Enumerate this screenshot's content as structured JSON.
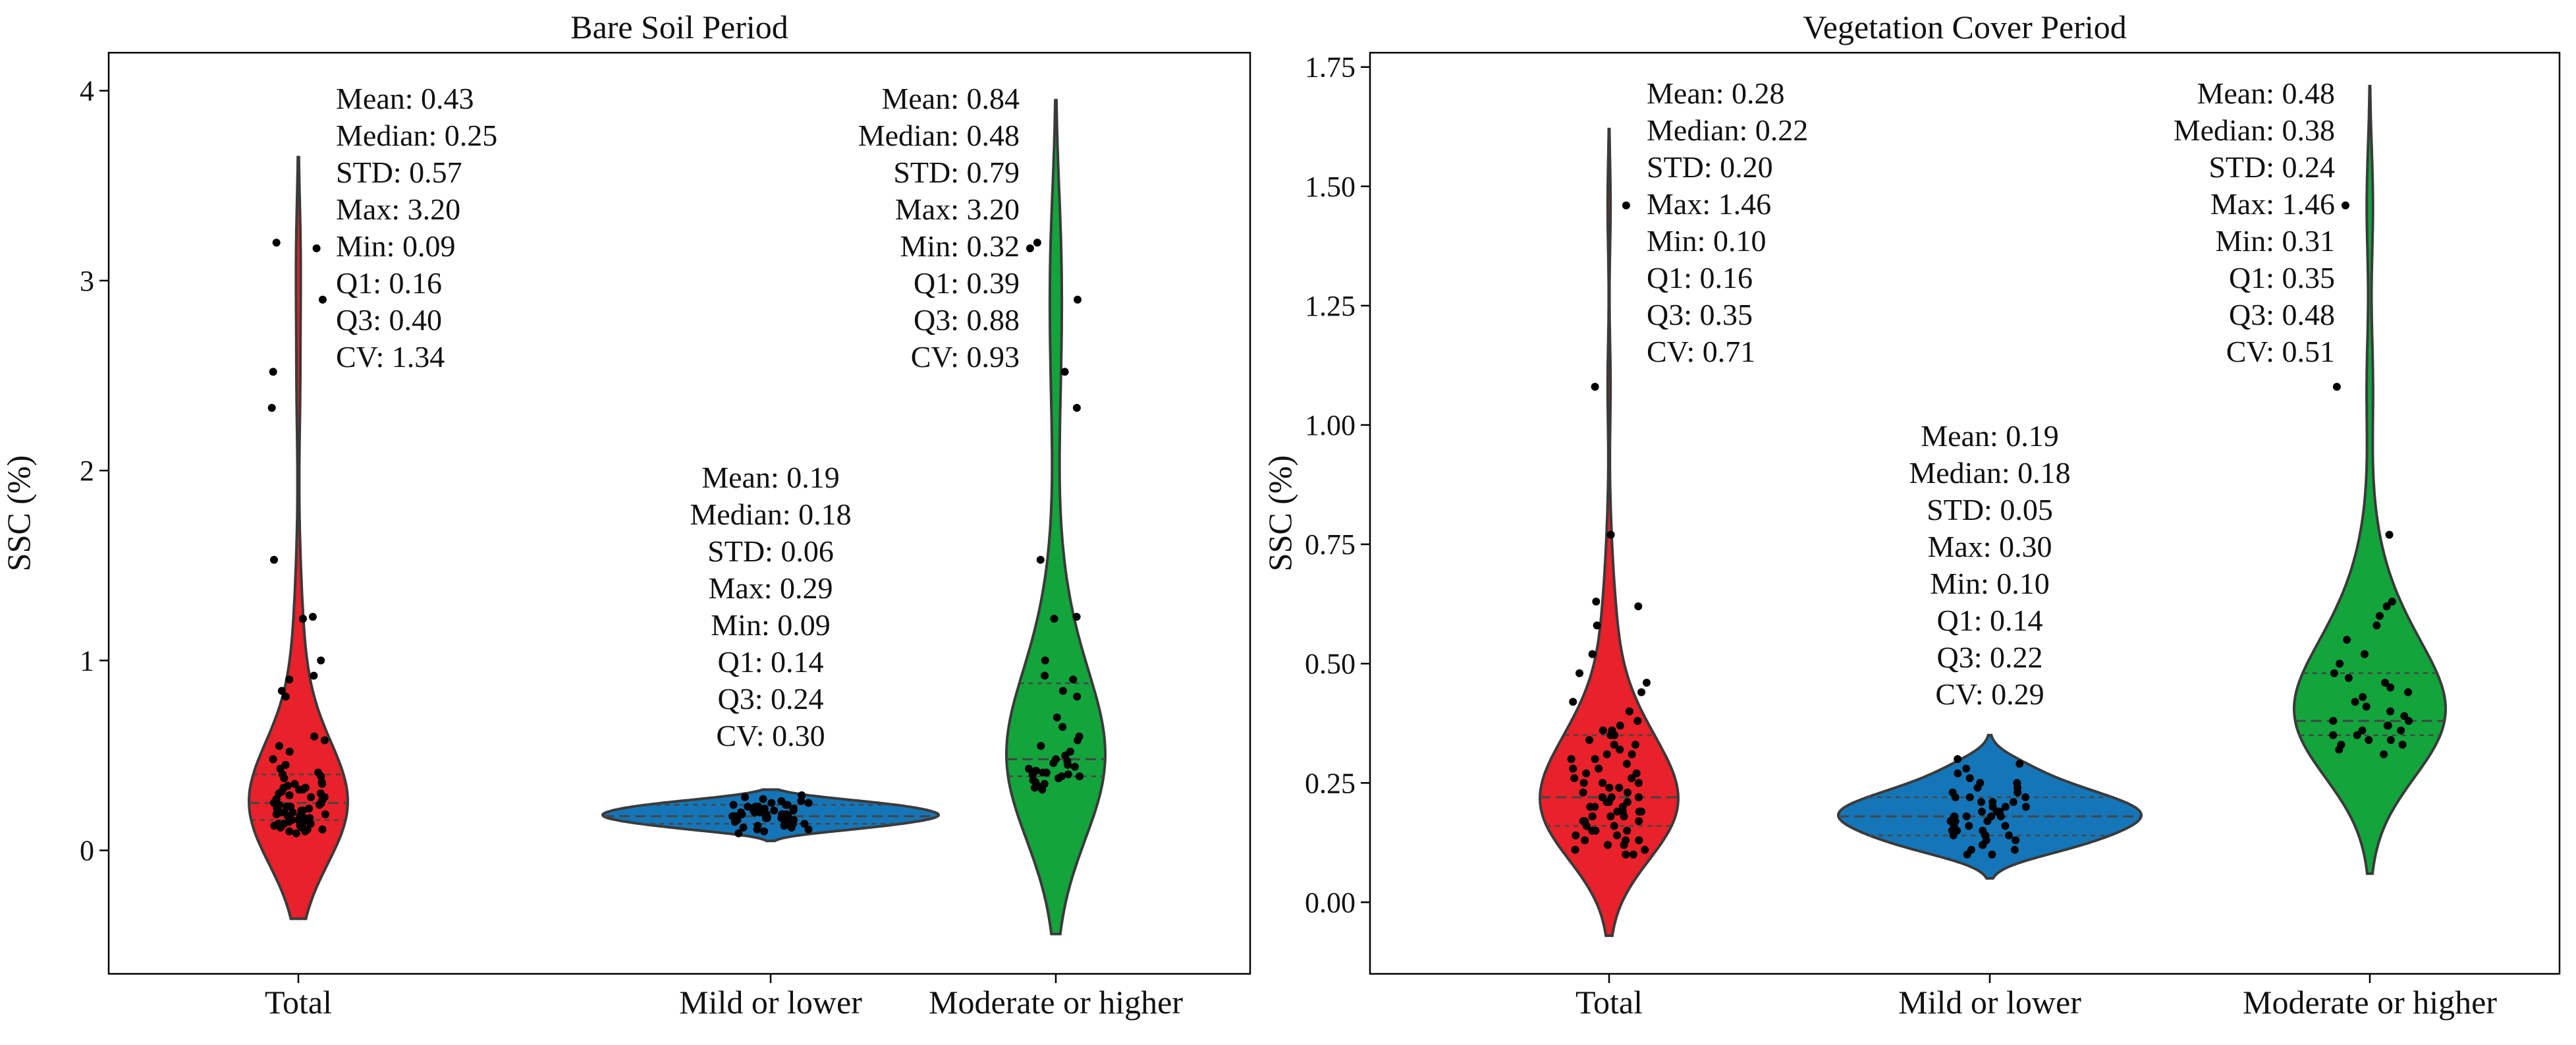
{
  "chart_data": [
    {
      "type": "violin",
      "title": "Bare Soil Period",
      "xlabel": "",
      "ylabel": "SSC (%)",
      "categories": [
        "Total",
        "Mild or lower",
        "Moderate or higher"
      ],
      "colors": [
        "#e8212a",
        "#1476b8",
        "#13a43c"
      ],
      "ylim": [
        -0.65,
        4.2
      ],
      "yticks": [
        0,
        1,
        2,
        3,
        4
      ],
      "ytick_labels": [
        "0",
        "1",
        "2",
        "3",
        "4"
      ],
      "series": [
        {
          "name": "Total",
          "range": [
            -0.36,
            3.65
          ],
          "quartiles": [
            0.16,
            0.25,
            0.4
          ],
          "stats": [
            "Mean: 0.43",
            "Median: 0.25",
            "STD: 0.57",
            "Max: 3.20",
            "Min: 0.09",
            "Q1: 0.16",
            "Q3: 0.40",
            "CV: 1.34"
          ],
          "points": [
            3.2,
            3.17,
            2.9,
            2.52,
            2.33,
            1.53,
            1.23,
            1.22,
            1.0,
            0.92,
            0.9,
            0.84,
            0.81,
            0.6,
            0.58,
            0.55,
            0.52,
            0.48,
            0.45,
            0.43,
            0.41,
            0.4,
            0.39,
            0.38,
            0.36,
            0.35,
            0.34,
            0.33,
            0.32,
            0.31,
            0.3,
            0.29,
            0.28,
            0.27,
            0.26,
            0.25,
            0.25,
            0.24,
            0.23,
            0.22,
            0.22,
            0.21,
            0.2,
            0.2,
            0.19,
            0.18,
            0.18,
            0.17,
            0.17,
            0.16,
            0.16,
            0.15,
            0.15,
            0.14,
            0.14,
            0.13,
            0.13,
            0.12,
            0.12,
            0.11,
            0.11,
            0.1,
            0.1,
            0.09,
            0.27,
            0.3,
            0.21,
            0.19,
            0.24,
            0.35,
            0.33,
            0.14,
            0.17,
            0.26,
            0.28,
            0.32,
            0.2,
            0.23
          ]
        },
        {
          "name": "Mild or lower",
          "range": [
            0.05,
            0.32
          ],
          "quartiles": [
            0.14,
            0.18,
            0.24
          ],
          "stats": [
            "Mean: 0.19",
            "Median: 0.18",
            "STD: 0.06",
            "Max: 0.29",
            "Min: 0.09",
            "Q1: 0.14",
            "Q3: 0.24",
            "CV: 0.30"
          ],
          "points": [
            0.29,
            0.28,
            0.27,
            0.26,
            0.26,
            0.25,
            0.25,
            0.24,
            0.24,
            0.23,
            0.23,
            0.22,
            0.22,
            0.21,
            0.21,
            0.2,
            0.2,
            0.19,
            0.19,
            0.19,
            0.18,
            0.18,
            0.18,
            0.17,
            0.17,
            0.17,
            0.16,
            0.16,
            0.15,
            0.15,
            0.14,
            0.14,
            0.14,
            0.13,
            0.13,
            0.12,
            0.12,
            0.11,
            0.11,
            0.1,
            0.09,
            0.2,
            0.22,
            0.16,
            0.24,
            0.18,
            0.21,
            0.15,
            0.23,
            0.19
          ]
        },
        {
          "name": "Moderate or higher",
          "range": [
            -0.44,
            3.95
          ],
          "quartiles": [
            0.39,
            0.48,
            0.88
          ],
          "stats": [
            "Mean: 0.84",
            "Median: 0.48",
            "STD: 0.79",
            "Max: 3.20",
            "Min: 0.32",
            "Q1: 0.39",
            "Q3: 0.88",
            "CV: 0.93"
          ],
          "points": [
            3.2,
            3.17,
            2.9,
            2.52,
            2.33,
            1.53,
            1.23,
            1.22,
            1.0,
            0.92,
            0.9,
            0.84,
            0.81,
            0.7,
            0.65,
            0.6,
            0.58,
            0.55,
            0.52,
            0.5,
            0.48,
            0.47,
            0.46,
            0.45,
            0.44,
            0.43,
            0.42,
            0.41,
            0.41,
            0.4,
            0.4,
            0.39,
            0.39,
            0.38,
            0.37,
            0.36,
            0.35,
            0.34,
            0.33,
            0.32
          ]
        }
      ]
    },
    {
      "type": "violin",
      "title": "Vegetation Cover Period",
      "xlabel": "",
      "ylabel": "SSC (%)",
      "categories": [
        "Total",
        "Mild or lower",
        "Moderate or higher"
      ],
      "colors": [
        "#e8212a",
        "#1476b8",
        "#13a43c"
      ],
      "ylim": [
        -0.15,
        1.78
      ],
      "yticks": [
        0,
        0.25,
        0.5,
        0.75,
        1.0,
        1.25,
        1.5,
        1.75
      ],
      "ytick_labels": [
        "0.00",
        "0.25",
        "0.50",
        "0.75",
        "1.00",
        "1.25",
        "1.50",
        "1.75"
      ],
      "series": [
        {
          "name": "Total",
          "range": [
            -0.07,
            1.62
          ],
          "quartiles": [
            0.16,
            0.22,
            0.35
          ],
          "stats": [
            "Mean: 0.28",
            "Median: 0.22",
            "STD: 0.20",
            "Max: 1.46",
            "Min: 0.10",
            "Q1: 0.16",
            "Q3: 0.35",
            "CV: 0.71"
          ],
          "points": [
            1.46,
            1.08,
            0.77,
            0.63,
            0.62,
            0.58,
            0.52,
            0.48,
            0.46,
            0.44,
            0.42,
            0.4,
            0.38,
            0.37,
            0.36,
            0.35,
            0.35,
            0.34,
            0.33,
            0.32,
            0.31,
            0.3,
            0.29,
            0.28,
            0.27,
            0.26,
            0.25,
            0.25,
            0.24,
            0.23,
            0.22,
            0.22,
            0.21,
            0.21,
            0.2,
            0.2,
            0.19,
            0.19,
            0.18,
            0.18,
            0.17,
            0.17,
            0.16,
            0.16,
            0.15,
            0.15,
            0.14,
            0.14,
            0.13,
            0.13,
            0.12,
            0.12,
            0.11,
            0.11,
            0.1,
            0.1,
            0.27,
            0.3,
            0.21,
            0.19,
            0.24,
            0.33,
            0.15,
            0.18,
            0.26,
            0.28,
            0.36,
            0.2,
            0.23,
            0.17,
            0.13,
            0.31,
            0.25,
            0.22,
            0.19
          ]
        },
        {
          "name": "Mild or lower",
          "range": [
            0.05,
            0.35
          ],
          "quartiles": [
            0.14,
            0.18,
            0.22
          ],
          "stats": [
            "Mean: 0.19",
            "Median: 0.18",
            "STD: 0.05",
            "Max: 0.30",
            "Min: 0.10",
            "Q1: 0.14",
            "Q3: 0.22",
            "CV: 0.29"
          ],
          "points": [
            0.3,
            0.29,
            0.28,
            0.27,
            0.26,
            0.25,
            0.25,
            0.24,
            0.23,
            0.23,
            0.22,
            0.22,
            0.21,
            0.21,
            0.2,
            0.2,
            0.19,
            0.19,
            0.19,
            0.18,
            0.18,
            0.18,
            0.17,
            0.17,
            0.16,
            0.16,
            0.15,
            0.15,
            0.14,
            0.14,
            0.13,
            0.13,
            0.12,
            0.12,
            0.11,
            0.11,
            0.1,
            0.1,
            0.2,
            0.22,
            0.16,
            0.24,
            0.18,
            0.21,
            0.15,
            0.17,
            0.19,
            0.14
          ]
        },
        {
          "name": "Moderate or higher",
          "range": [
            0.06,
            1.71
          ],
          "quartiles": [
            0.35,
            0.38,
            0.48
          ],
          "stats": [
            "Mean: 0.48",
            "Median: 0.38",
            "STD: 0.24",
            "Max: 1.46",
            "Min: 0.31",
            "Q1: 0.35",
            "Q3: 0.48",
            "CV: 0.51"
          ],
          "points": [
            1.46,
            1.08,
            0.77,
            0.63,
            0.62,
            0.6,
            0.58,
            0.55,
            0.52,
            0.5,
            0.48,
            0.47,
            0.46,
            0.45,
            0.44,
            0.43,
            0.42,
            0.41,
            0.4,
            0.39,
            0.38,
            0.38,
            0.37,
            0.37,
            0.36,
            0.36,
            0.35,
            0.35,
            0.34,
            0.34,
            0.33,
            0.33,
            0.32,
            0.31
          ]
        }
      ]
    }
  ]
}
